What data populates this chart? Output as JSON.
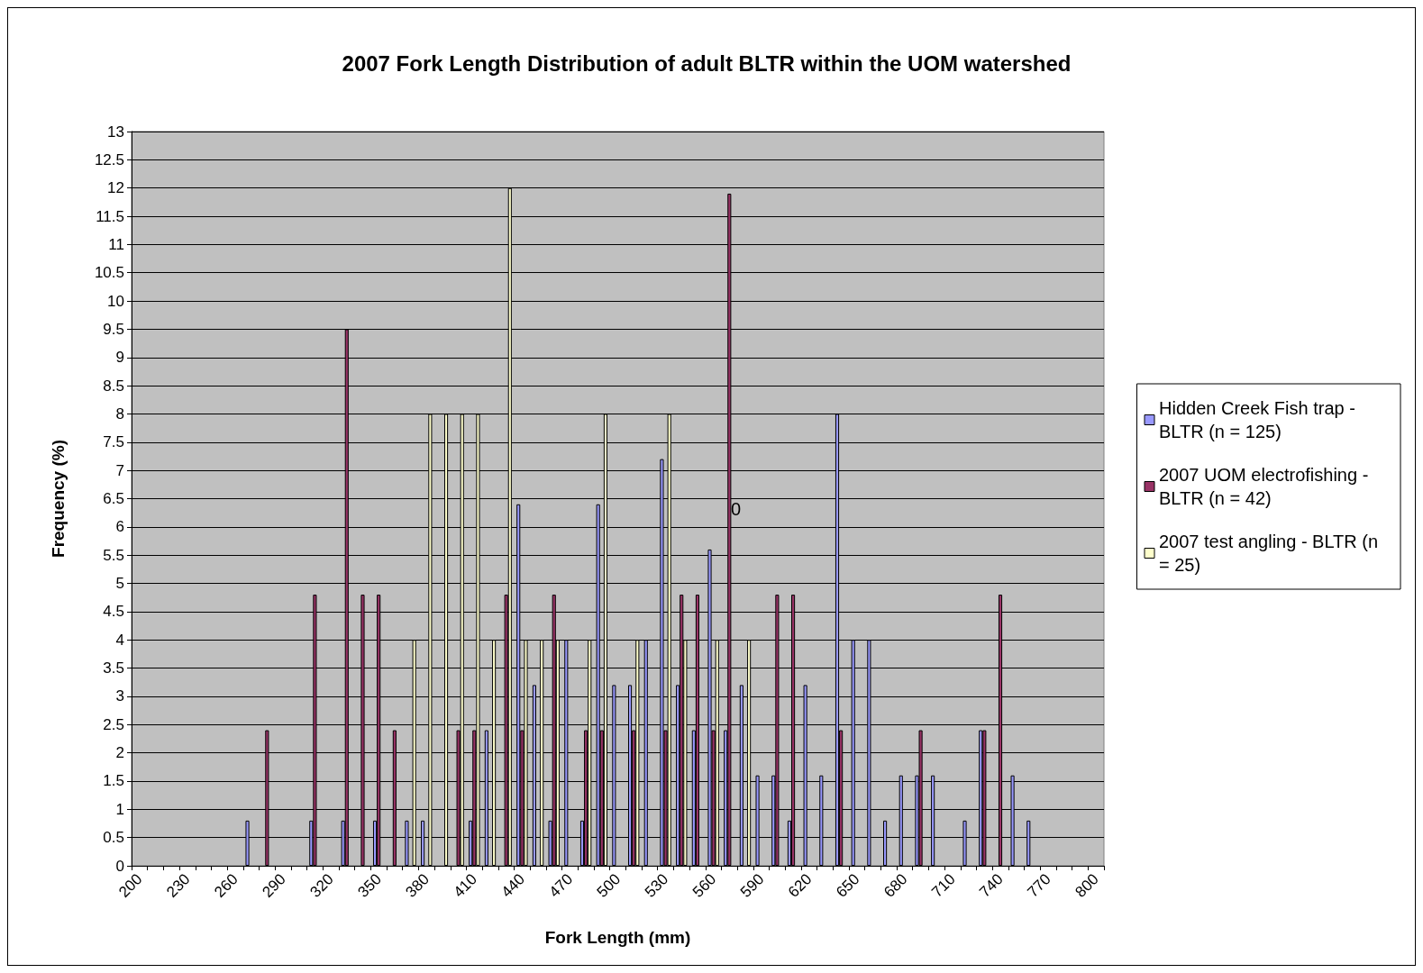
{
  "chart_data": {
    "type": "bar",
    "title": "2007 Fork Length Distribution of adult BLTR within the UOM watershed",
    "xlabel": "Fork Length (mm)",
    "ylabel": "Frequency (%)",
    "categories": [
      "200",
      null,
      null,
      "230",
      null,
      null,
      "260",
      null,
      null,
      "290",
      null,
      null,
      "320",
      null,
      null,
      "350",
      null,
      null,
      "380",
      null,
      null,
      "410",
      null,
      null,
      "440",
      null,
      null,
      "470",
      null,
      null,
      "500",
      null,
      null,
      "530",
      null,
      null,
      "560",
      null,
      null,
      "590",
      null,
      null,
      "620",
      null,
      null,
      "650",
      null,
      null,
      "680",
      null,
      null,
      "710",
      null,
      null,
      "740",
      null,
      null,
      "770",
      null,
      null,
      "800"
    ],
    "series": [
      {
        "name": "Hidden Creek Fish trap - BLTR (n = 125)",
        "color": "#9999ff",
        "values": [
          null,
          null,
          null,
          null,
          null,
          null,
          null,
          0.8,
          null,
          null,
          null,
          0.8,
          null,
          0.8,
          null,
          0.8,
          null,
          0.8,
          0.8,
          null,
          null,
          0.8,
          2.4,
          null,
          6.4,
          3.2,
          0.8,
          4,
          0.8,
          6.4,
          3.2,
          3.2,
          4,
          7.2,
          3.2,
          2.4,
          5.6,
          2.4,
          3.2,
          1.6,
          1.6,
          0.8,
          3.2,
          1.6,
          8,
          4,
          4,
          0.8,
          1.6,
          1.6,
          1.6,
          null,
          0.8,
          2.4,
          null,
          1.6,
          0.8,
          null,
          null,
          null,
          null
        ]
      },
      {
        "name": "2007 UOM electrofishing - BLTR (n = 42)",
        "color": "#993366",
        "values": [
          null,
          null,
          null,
          null,
          null,
          null,
          null,
          null,
          2.4,
          null,
          null,
          4.8,
          null,
          9.5,
          4.8,
          4.8,
          2.4,
          null,
          null,
          null,
          2.4,
          2.4,
          null,
          4.8,
          2.4,
          null,
          4.8,
          null,
          2.4,
          2.4,
          null,
          2.4,
          null,
          2.4,
          4.8,
          4.8,
          2.4,
          11.9,
          null,
          null,
          4.8,
          4.8,
          null,
          null,
          2.4,
          null,
          null,
          null,
          null,
          2.4,
          null,
          null,
          null,
          2.4,
          4.8,
          null,
          null,
          null,
          null,
          null,
          null
        ]
      },
      {
        "name": "2007 test angling - BLTR (n = 25)",
        "color": "#ffffcc",
        "values": [
          null,
          null,
          null,
          null,
          null,
          null,
          null,
          null,
          null,
          null,
          null,
          null,
          null,
          null,
          null,
          null,
          null,
          4,
          8,
          8,
          8,
          8,
          4,
          12,
          4,
          4,
          4,
          null,
          4,
          8,
          null,
          4,
          null,
          8,
          4,
          null,
          4,
          null,
          4,
          null,
          null,
          null,
          null,
          null,
          null,
          null,
          null,
          null,
          null,
          null,
          null,
          null,
          null,
          null,
          null,
          null,
          null,
          null,
          null,
          null,
          null
        ]
      }
    ],
    "ylim": [
      0,
      13
    ],
    "yticks": [
      0,
      0.5,
      1,
      1.5,
      2,
      2.5,
      3,
      3.5,
      4,
      4.5,
      5,
      5.5,
      6,
      6.5,
      7,
      7.5,
      8,
      8.5,
      9,
      9.5,
      10,
      10.5,
      11,
      11.5,
      12,
      12.5,
      13
    ],
    "annotations": [
      "0"
    ],
    "grid": "y",
    "legend": "right"
  }
}
